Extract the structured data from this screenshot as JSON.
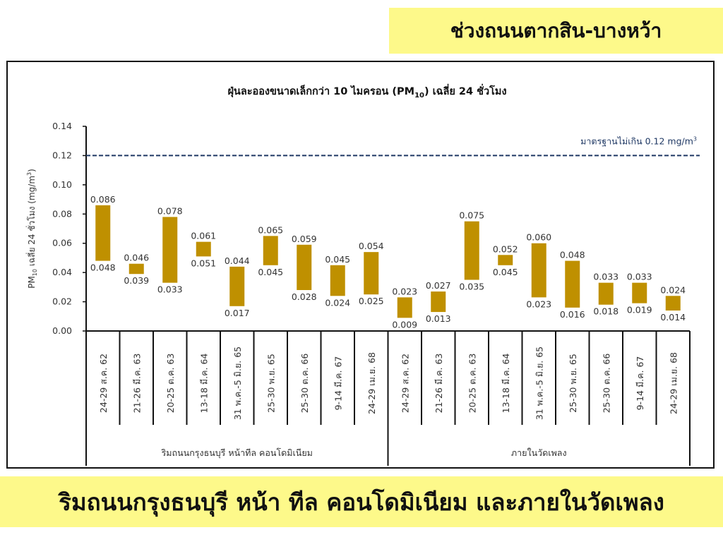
{
  "header": {
    "title": "ช่วงถนนตากสิน-บางหว้า"
  },
  "footer": {
    "caption": "ริมถนนกรุงธนบุรี หน้า ทีล คอนโดมิเนียม และภายในวัดเพลง"
  },
  "chart_data": {
    "type": "bar",
    "subtype": "floating-range",
    "title": {
      "main": "ฝุ่นละอองขนาดเล็กกว่า 10 ไมครอน (PM",
      "sub": "10",
      "end": ") เฉลี่ย 24 ชั่วโมง"
    },
    "ylabel": {
      "main": "PM",
      "sub": "10",
      "mid": " เฉลี่ย 24 ชั่วโมง (mg/m",
      "sup": "3",
      "end": ")"
    },
    "ylim": [
      0,
      0.14
    ],
    "yticks": [
      "0.00",
      "0.02",
      "0.04",
      "0.06",
      "0.08",
      "0.10",
      "0.12",
      "0.14"
    ],
    "standard": {
      "value": 0.12,
      "label": "มาตรฐานไม่เกิน 0.12 mg/m",
      "label_sup": "3",
      "color": "#1f3864"
    },
    "bar_color": "#bf9000",
    "grid": false,
    "categories": [
      "24-29 ส.ค. 62",
      "21-26 มี.ค. 63",
      "20-25 ต.ค. 63",
      "13-18 มี.ค. 64",
      "31 พ.ค.-5 มิ.ย. 65",
      "25-30 พ.ย. 65",
      "25-30 ต.ค. 66",
      "9-14 มี.ค. 67",
      "24-29 เม.ย. 68",
      "24-29 ส.ค. 62",
      "21-26 มี.ค. 63",
      "20-25 ต.ค. 63",
      "13-18 มี.ค. 64",
      "31 พ.ค.-5 มิ.ย. 65",
      "25-30 พ.ย. 65",
      "25-30 ต.ค. 66",
      "9-14 มี.ค. 67",
      "24-29 เม.ย. 68"
    ],
    "series": [
      {
        "min": [
          0.048,
          0.039,
          0.033,
          0.051,
          0.017,
          0.045,
          0.028,
          0.024,
          0.025,
          0.009,
          0.013,
          0.035,
          0.045,
          0.023,
          0.016,
          0.018,
          0.019,
          0.014
        ],
        "max": [
          0.086,
          0.046,
          0.078,
          0.061,
          0.044,
          0.065,
          0.059,
          0.045,
          0.054,
          0.023,
          0.027,
          0.075,
          0.052,
          0.06,
          0.048,
          0.033,
          0.033,
          0.024
        ],
        "min_labels": [
          "0.048",
          "0.039",
          "0.033",
          "0.051",
          "0.017",
          "0.045",
          "0.028",
          "0.024",
          "0.025",
          "0.009",
          "0.013",
          "0.035",
          "0.045",
          "0.023",
          "0.016",
          "0.018",
          "0.019",
          "0.014"
        ],
        "max_labels": [
          "0.086",
          "0.046",
          "0.078",
          "0.061",
          "0.044",
          "0.065",
          "0.059",
          "0.045",
          "0.054",
          "0.023",
          "0.027",
          "0.075",
          "0.052",
          "0.060",
          "0.048",
          "0.033",
          "0.033",
          "0.024"
        ]
      }
    ],
    "groups": [
      {
        "label": "ริมถนนกรุงธนบุรี หน้าทีล คอนโดมิเนียม",
        "count": 9
      },
      {
        "label": "ภายในวัดเพลง",
        "count": 9
      }
    ]
  }
}
